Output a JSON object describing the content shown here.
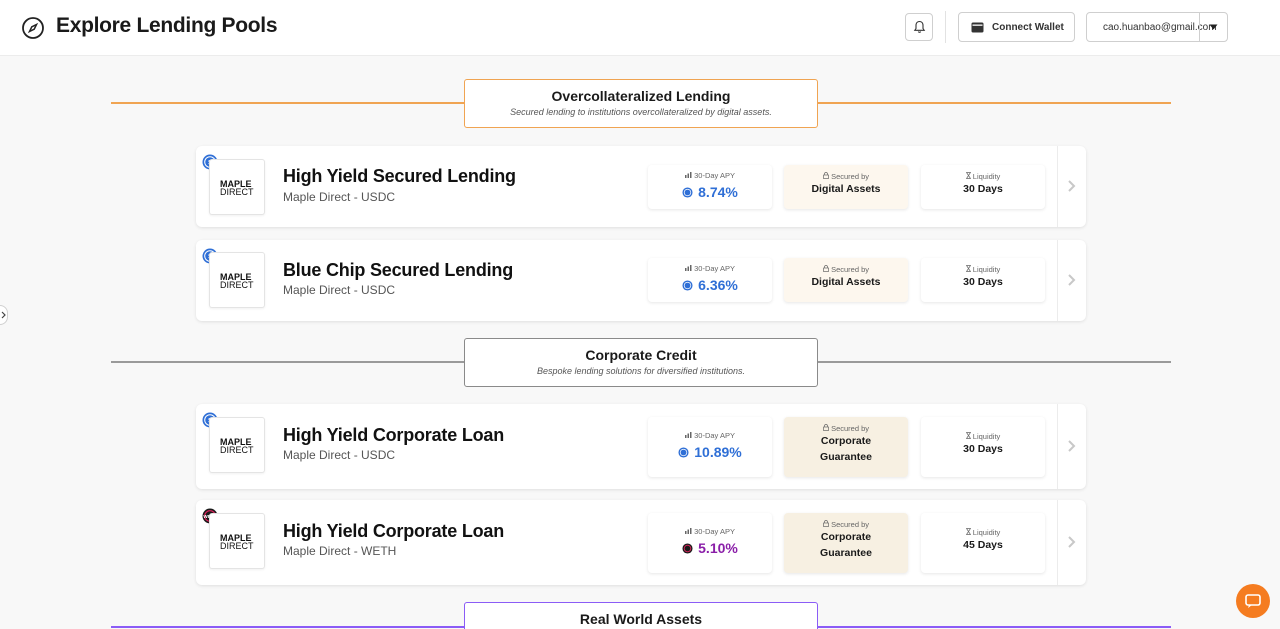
{
  "header": {
    "title": "Explore Lending Pools",
    "wallet_label": "Connect Wallet",
    "account_email": "cao.huanbao@gmail.com"
  },
  "colors": {
    "overcollateral": "#f0a452",
    "corporate": "#8a8a8a",
    "rwa": "#8b5cf6",
    "usdc_apy": "#2f6fd6",
    "weth_apy": "#8a1ea8"
  },
  "sections": [
    {
      "title": "Overcollateralized Lending",
      "subtitle": "Secured lending to institutions overcollateralized by digital assets."
    },
    {
      "title": "Corporate Credit",
      "subtitle": "Bespoke lending solutions for diversified institutions."
    },
    {
      "title": "Real World Assets",
      "subtitle": ""
    }
  ],
  "pools": [
    {
      "name": "High Yield Secured Lending",
      "sub": "Maple Direct - USDC",
      "apy_label": "30-Day APY",
      "apy": "8.74%",
      "secured_label": "Secured by",
      "secured": "Digital Assets",
      "liq_label": "Liquidity",
      "liq": "30 Days",
      "logo_1": "MAPLE",
      "logo_2": "DIRECT",
      "token": "usdc"
    },
    {
      "name": "Blue Chip Secured Lending",
      "sub": "Maple Direct - USDC",
      "apy_label": "30-Day APY",
      "apy": "6.36%",
      "secured_label": "Secured by",
      "secured": "Digital Assets",
      "liq_label": "Liquidity",
      "liq": "30 Days",
      "logo_1": "MAPLE",
      "logo_2": "DIRECT",
      "token": "usdc"
    },
    {
      "name": "High Yield Corporate Loan",
      "sub": "Maple Direct - USDC",
      "apy_label": "30-Day APY",
      "apy": "10.89%",
      "secured_label": "Secured by",
      "secured_1": "Corporate",
      "secured_2": "Guarantee",
      "liq_label": "Liquidity",
      "liq": "30 Days",
      "logo_1": "MAPLE",
      "logo_2": "DIRECT",
      "token": "usdc"
    },
    {
      "name": "High Yield Corporate Loan",
      "sub": "Maple Direct - WETH",
      "apy_label": "30-Day APY",
      "apy": "5.10%",
      "secured_label": "Secured by",
      "secured_1": "Corporate",
      "secured_2": "Guarantee",
      "liq_label": "Liquidity",
      "liq": "45 Days",
      "logo_1": "MAPLE",
      "logo_2": "DIRECT",
      "token": "weth"
    }
  ]
}
